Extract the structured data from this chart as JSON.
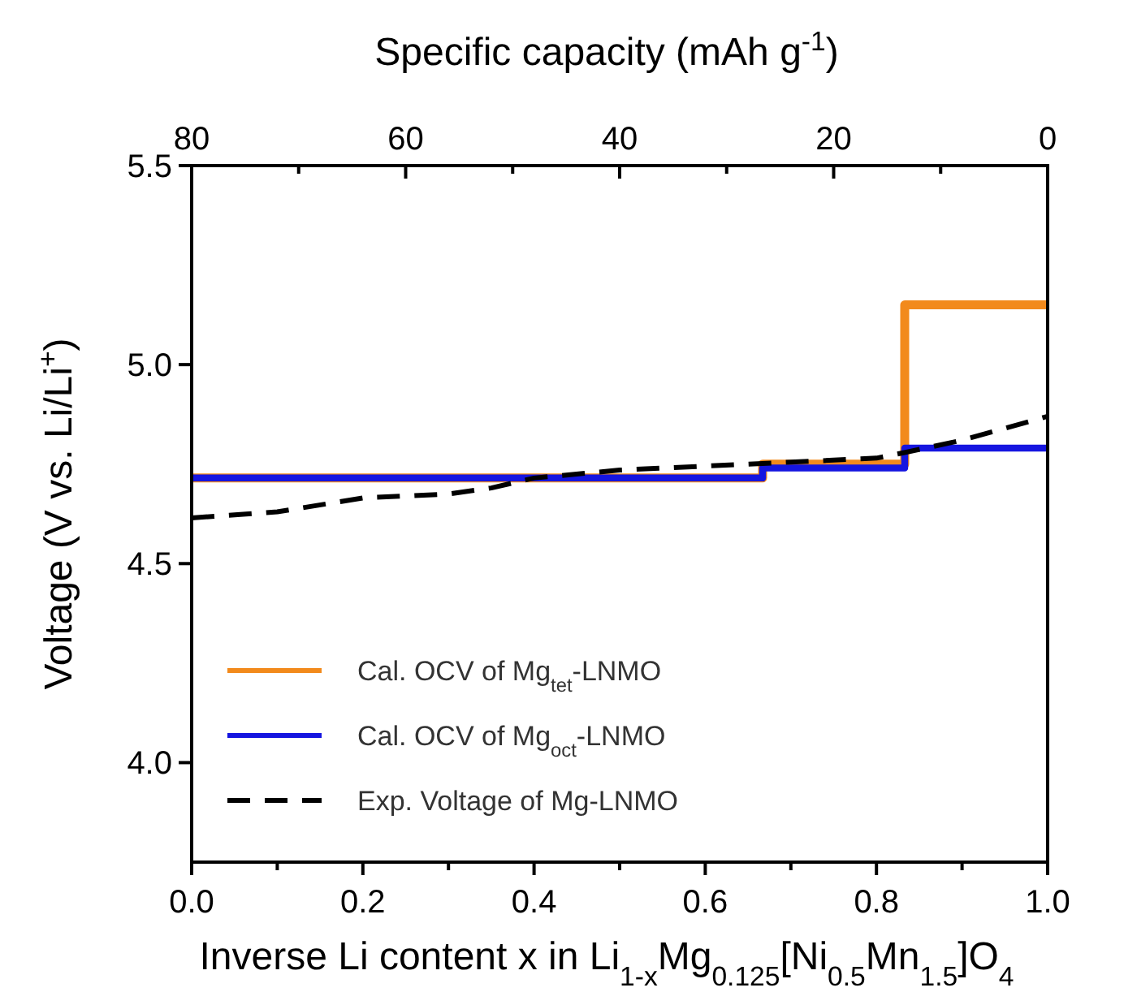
{
  "chart_data": {
    "type": "step",
    "xlabel": "Inverse Li content x in Li$_{1-x}$Mg$_{0.125}$[Ni$_{0.5}$Mn$_{1.5}$]O$_{4}$",
    "ylabel": "Voltage (V vs. Li/Li$^{+}$)",
    "x2label": "Specific capacity (mAh g$^{-1}$)",
    "xlim": [
      0,
      1
    ],
    "xticks": [
      {
        "value": 0,
        "label": "0.0"
      },
      {
        "value": 0.1,
        "label": null
      },
      0.2,
      {
        "value": 0.3,
        "label": null
      },
      0.4,
      {
        "value": 0.5,
        "label": null
      },
      0.6,
      {
        "value": 0.7,
        "label": null
      },
      0.8,
      {
        "value": 0.9,
        "label": null
      },
      {
        "value": 1,
        "label": "1.0"
      }
    ],
    "x2lim": [
      80,
      0
    ],
    "x2ticks": [
      80,
      {
        "value": 70,
        "label": null
      },
      60,
      {
        "value": 50,
        "label": null
      },
      40,
      {
        "value": 30,
        "label": null
      },
      20,
      {
        "value": 10,
        "label": null
      },
      0
    ],
    "ylim": [
      3.75,
      5.5
    ],
    "yticks": [
      {
        "value": 4,
        "label": "4.0"
      },
      4.5,
      {
        "value": 5,
        "label": "5.0"
      },
      5.5
    ],
    "legend": "bottom left",
    "grid": false,
    "series": [
      {
        "name": "Cal. OCV of Mg$_{tet}$-LNMO",
        "color": "#f28a1c",
        "x": [
          0,
          0.667,
          0.833,
          1
        ],
        "values": [
          4.715,
          4.75,
          5.15,
          5.15
        ]
      },
      {
        "name": "Cal. OCV of Mg$_{oct}$-LNMO",
        "color": "#1515e0",
        "x": [
          0,
          0.667,
          0.833,
          1
        ],
        "values": [
          4.715,
          4.74,
          4.79,
          4.79
        ]
      },
      {
        "name": "Exp. Voltage of Mg-LNMO",
        "color": "#000000",
        "type": "line",
        "line_style": "dashed",
        "x": [
          0,
          0.1,
          0.2,
          0.3,
          0.35,
          0.4,
          0.5,
          0.6,
          0.7,
          0.8,
          0.835,
          0.9,
          1
        ],
        "values": [
          4.615,
          4.63,
          4.665,
          4.675,
          4.69,
          4.715,
          4.735,
          4.745,
          4.755,
          4.765,
          4.78,
          4.81,
          4.87
        ]
      }
    ]
  }
}
